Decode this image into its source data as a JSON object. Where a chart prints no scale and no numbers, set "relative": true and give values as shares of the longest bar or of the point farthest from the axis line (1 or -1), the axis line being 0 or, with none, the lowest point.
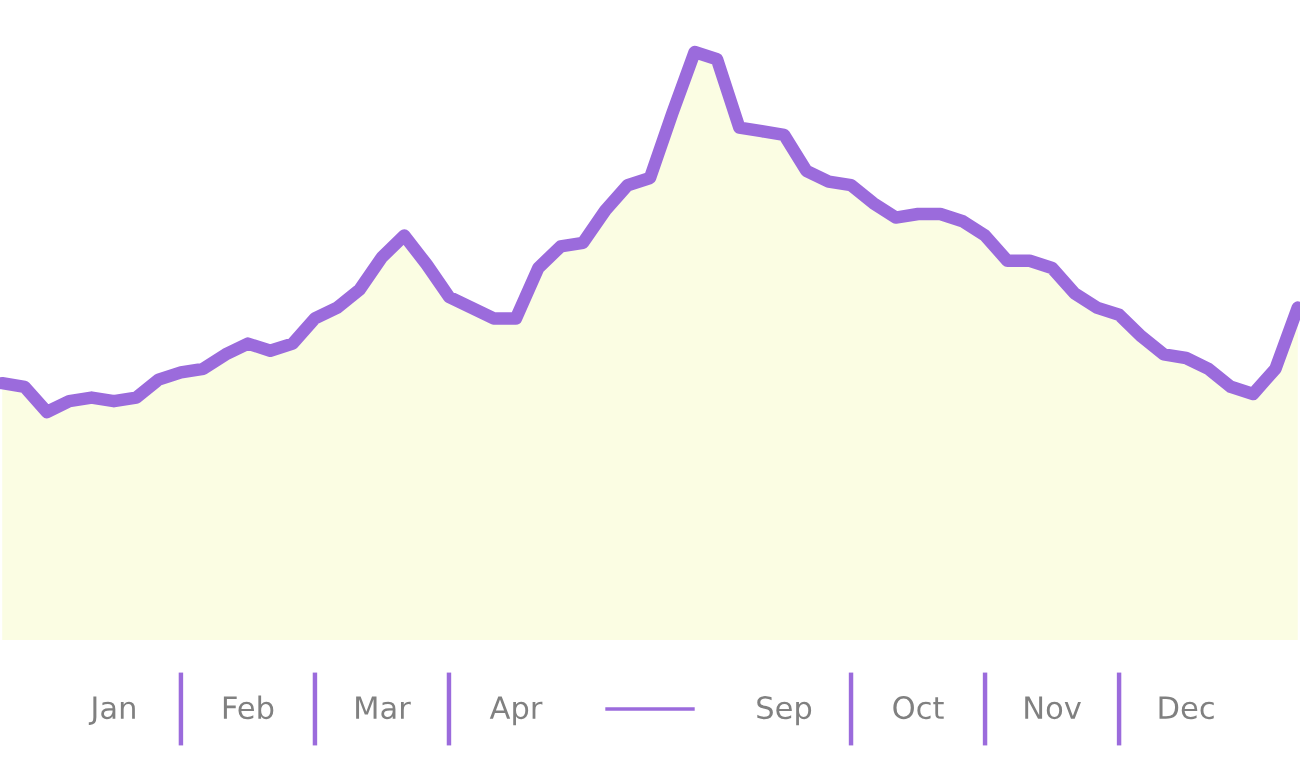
{
  "chart_data": {
    "type": "area",
    "relative": true,
    "legend": false,
    "grid": false,
    "categories": [
      null,
      null,
      null,
      null,
      null,
      "Jan",
      null,
      null,
      null,
      null,
      null,
      "Feb",
      null,
      null,
      null,
      null,
      null,
      "Mar",
      null,
      null,
      null,
      null,
      null,
      "Apr",
      null,
      null,
      null,
      null,
      null,
      null,
      null,
      null,
      null,
      null,
      null,
      "Sep",
      null,
      null,
      null,
      null,
      null,
      "Oct",
      null,
      null,
      null,
      null,
      null,
      "Nov",
      null,
      null,
      null,
      null,
      null,
      "Dec",
      null,
      null,
      null,
      null,
      null
    ],
    "series": [
      {
        "color": "#9b6bdc",
        "values": [
          0.08,
          0.07,
          0,
          0.03,
          0.04,
          0.03,
          0.04,
          0.09,
          0.11,
          0.12,
          0.16,
          0.19,
          0.17,
          0.19,
          0.26,
          0.29,
          0.34,
          0.43,
          0.49,
          0.41,
          0.32,
          0.29,
          0.26,
          0.26,
          0.4,
          0.46,
          0.47,
          0.56,
          0.63,
          0.65,
          0.83,
          1,
          0.98,
          0.79,
          0.78,
          0.77,
          0.67,
          0.64,
          0.63,
          0.58,
          0.54,
          0.55,
          0.55,
          0.53,
          0.49,
          0.42,
          0.42,
          0.4,
          0.33,
          0.29,
          0.27,
          0.21,
          0.16,
          0.15,
          0.12,
          0.07,
          0.05,
          0.12,
          0.29
        ]
      }
    ]
  }
}
